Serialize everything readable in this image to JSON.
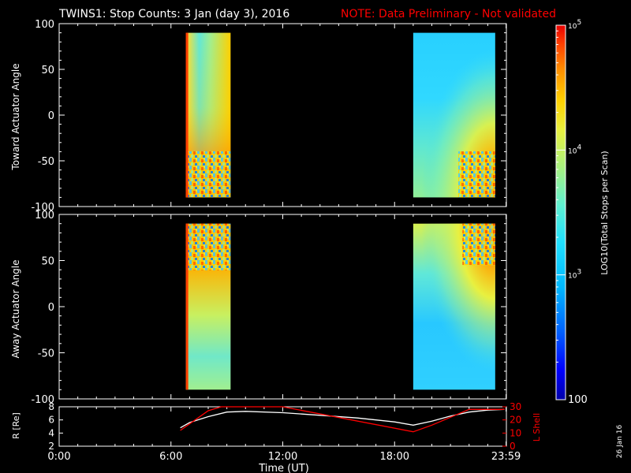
{
  "header": {
    "title": "TWINS1: Stop Counts:  3 Jan (day   3), 2016",
    "note": "NOTE: Data Preliminary - Not validated",
    "note_color": "#ff0000"
  },
  "footer": {
    "date_stamp": "26 Jan 16"
  },
  "chart_data": [
    {
      "type": "heatmap",
      "panel": "top",
      "ylabel": "Toward Actuator Angle",
      "xlim": [
        0,
        24
      ],
      "ylim": [
        -100,
        100
      ],
      "y_ticks": [
        100,
        50,
        0,
        -50,
        -100
      ],
      "x_ticks": [
        "0:00",
        "6:00",
        "12:00",
        "18:00",
        "23:59"
      ],
      "data_segments": [
        {
          "x_start": 6.8,
          "x_end": 9.2,
          "y_range": [
            -90,
            90
          ],
          "dominant_level": "medium-high",
          "high_count_edge": "left",
          "noise_region": "bottom"
        },
        {
          "x_start": 19.0,
          "x_end": 23.4,
          "y_range": [
            -90,
            90
          ],
          "dominant_level": "low-medium",
          "high_count_edge": "bottom-right",
          "noise_region": "bottom-right"
        }
      ]
    },
    {
      "type": "heatmap",
      "panel": "middle",
      "ylabel": "Away Actuator Angle",
      "xlim": [
        0,
        24
      ],
      "ylim": [
        -100,
        100
      ],
      "y_ticks": [
        100,
        50,
        0,
        -50,
        -100
      ],
      "x_ticks": [
        "0:00",
        "6:00",
        "12:00",
        "18:00",
        "23:59"
      ],
      "data_segments": [
        {
          "x_start": 6.8,
          "x_end": 9.2,
          "y_range": [
            -90,
            90
          ],
          "dominant_level": "medium-high",
          "high_count_edge": "top",
          "noise_region": "top"
        },
        {
          "x_start": 19.0,
          "x_end": 23.4,
          "y_range": [
            -90,
            90
          ],
          "dominant_level": "low-medium",
          "high_count_edge": "top-right",
          "noise_region": "top-right"
        }
      ]
    },
    {
      "type": "line",
      "panel": "bottom",
      "xlabel": "Time (UT)",
      "ylabel": "R [Re]",
      "y2label": "L Shell",
      "xlim": [
        0,
        24
      ],
      "ylim": [
        2,
        8
      ],
      "y_ticks": [
        "8",
        "6",
        "4",
        "2"
      ],
      "y2lim": [
        0,
        30
      ],
      "y2_ticks": [
        "30",
        "20",
        "10",
        "0"
      ],
      "x_ticks": [
        "0:00",
        "6:00",
        "12:00",
        "18:00",
        "23:59"
      ],
      "series": [
        {
          "axis": "left",
          "color": "#ffffff",
          "x": [
            6.5,
            7.0,
            8.0,
            9.0,
            10.0,
            12.0,
            14.0,
            16.0,
            18.0,
            19.0,
            20.0,
            21.0,
            22.0,
            23.0,
            23.9
          ],
          "y": [
            4.8,
            5.6,
            6.5,
            7.2,
            7.3,
            7.1,
            6.7,
            6.3,
            5.7,
            5.2,
            5.8,
            6.6,
            7.2,
            7.5,
            7.6
          ]
        },
        {
          "axis": "right",
          "color": "#ff0000",
          "x": [
            6.5,
            8.0,
            8.7,
            12.0,
            19.0,
            20.0,
            21.0,
            22.0,
            23.9
          ],
          "y": [
            12,
            27,
            31,
            31,
            11,
            16,
            22,
            28,
            28
          ]
        }
      ]
    }
  ],
  "colorbar": {
    "label": "LOG10(Total Stops per Scan)",
    "ticks": [
      {
        "label": "10^5",
        "value": 100000
      },
      {
        "label": "10^4",
        "value": 10000
      },
      {
        "label": "10^3",
        "value": 1000
      },
      {
        "label": "100",
        "value": 100
      }
    ],
    "colors": [
      "#0000a8",
      "#0000ff",
      "#0060ff",
      "#00b8ff",
      "#20e0ff",
      "#60f0d0",
      "#a8f080",
      "#e8f040",
      "#ffd000",
      "#ff9000",
      "#ff4000",
      "#e80000"
    ]
  }
}
